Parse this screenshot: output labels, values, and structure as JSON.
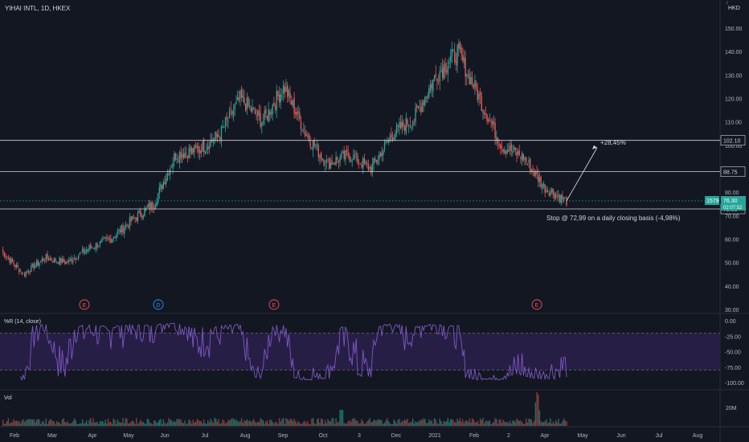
{
  "header": {
    "symbol_line": "YIHAI INTL, 1D, HKEX"
  },
  "currency": "HKD",
  "scale_label": "f",
  "indicator": {
    "name": "%R (14, close)",
    "levels": [
      "0.00",
      "-25.00",
      "-50.00",
      "-75.00",
      "-100.00"
    ]
  },
  "volume": {
    "name": "Vol",
    "tick": "20M"
  },
  "price_axis": {
    "ticks": [
      "150.00",
      "140.00",
      "130.00",
      "120.00",
      "110.00",
      "100.00",
      "90.00",
      "80.00",
      "70.00",
      "60.00",
      "50.00",
      "40.00",
      "30.00"
    ]
  },
  "time_axis": {
    "labels": [
      "Feb",
      "Mar",
      "Apr",
      "May",
      "Jun",
      "Jul",
      "Aug",
      "Sep",
      "Oct",
      "3",
      "Dec",
      "2021",
      "Feb",
      "2",
      "Apr",
      "May",
      "Jun",
      "Jul",
      "Aug"
    ]
  },
  "levels": [
    {
      "label": "102.10",
      "value": 102.1
    },
    {
      "label": "88.75",
      "value": 88.75
    },
    {
      "label": "72.85",
      "value": 72.85
    }
  ],
  "last_price": {
    "symbol": "1579",
    "price": "76.30",
    "countdown": "02:07:52"
  },
  "annotations": {
    "target": "+28,45%",
    "stop": "Stop @ 72,99 on a daily closing basis (-4,98%)"
  },
  "event_markers": [
    "E",
    "D",
    "E",
    "E"
  ],
  "colors": {
    "up": "#26a69a",
    "down": "#ef5350",
    "indicator_line": "#7e57c2",
    "band": "#2a1f4a",
    "last_price_bg": "#26a69a"
  },
  "chart_data": {
    "type": "candlestick",
    "title": "YIHAI INTL, 1D, HKEX",
    "ylim": [
      30,
      155
    ],
    "x_range": [
      "Jan 2020",
      "Sep 2021"
    ],
    "anchor_closes": [
      {
        "date": "Jan",
        "value": 55
      },
      {
        "date": "Feb",
        "value": 45
      },
      {
        "date": "Mar",
        "value": 52
      },
      {
        "date": "Apr",
        "value": 50
      },
      {
        "date": "Apr-late",
        "value": 56
      },
      {
        "date": "May",
        "value": 60
      },
      {
        "date": "Jun",
        "value": 68
      },
      {
        "date": "Jul",
        "value": 75
      },
      {
        "date": "Jul-mid",
        "value": 96
      },
      {
        "date": "Aug",
        "value": 98
      },
      {
        "date": "Aug-late",
        "value": 104
      },
      {
        "date": "Sep",
        "value": 120
      },
      {
        "date": "Sep-mid",
        "value": 110
      },
      {
        "date": "Oct",
        "value": 125
      },
      {
        "date": "Oct-late",
        "value": 105
      },
      {
        "date": "Nov",
        "value": 92
      },
      {
        "date": "Nov-late",
        "value": 96
      },
      {
        "date": "Dec",
        "value": 90
      },
      {
        "date": "Dec-late",
        "value": 105
      },
      {
        "date": "2021",
        "value": 112
      },
      {
        "date": "Jan-late",
        "value": 130
      },
      {
        "date": "Feb",
        "value": 140
      },
      {
        "date": "Feb-mid",
        "value": 120
      },
      {
        "date": "Mar",
        "value": 100
      },
      {
        "date": "Mar-mid",
        "value": 95
      },
      {
        "date": "Apr",
        "value": 82
      },
      {
        "date": "Apr-mid",
        "value": 76.3
      }
    ],
    "williams_r": {
      "name": "%R (14, close)",
      "ylim": [
        -105,
        5
      ],
      "upper": -20,
      "lower": -80
    },
    "volume": {
      "name": "Vol",
      "spike": "Apr"
    }
  }
}
